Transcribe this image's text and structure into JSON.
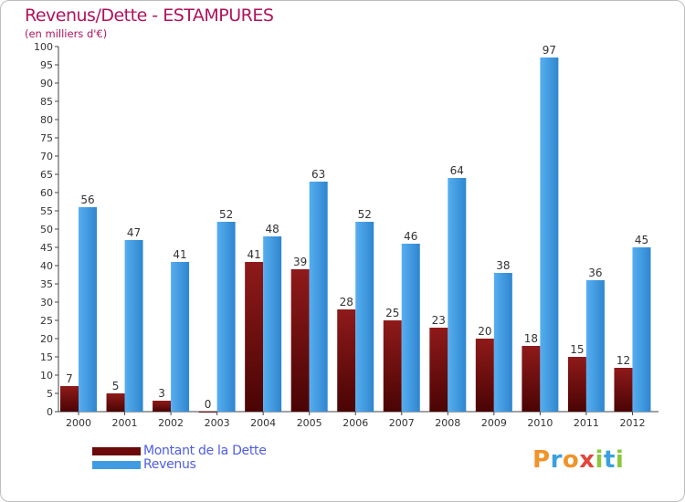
{
  "header": {
    "title": "Revenus/Dette - ESTAMPURES",
    "subtitle": "(en milliers d'€)"
  },
  "colors": {
    "title": "#b0135c",
    "dette": "#7a0c0c",
    "revenus": "#3f9ce3",
    "legend_text": "#4f5de6"
  },
  "legend": {
    "items": [
      {
        "label": "Montant de la Dette",
        "color": "#6a0a0a"
      },
      {
        "label": "Revenus",
        "color": "#3f9ce3"
      }
    ]
  },
  "logo": {
    "letters": [
      "P",
      "r",
      "o",
      "x",
      "i",
      "t",
      "i"
    ]
  },
  "chart_data": {
    "type": "bar",
    "title": "Revenus/Dette - ESTAMPURES",
    "subtitle": "(en milliers d'€)",
    "categories": [
      "2000",
      "2001",
      "2002",
      "2003",
      "2004",
      "2005",
      "2006",
      "2007",
      "2008",
      "2009",
      "2010",
      "2011",
      "2012"
    ],
    "series": [
      {
        "name": "Montant de la Dette",
        "values": [
          7,
          5,
          3,
          0,
          41,
          39,
          28,
          25,
          23,
          20,
          18,
          15,
          12
        ]
      },
      {
        "name": "Revenus",
        "values": [
          56,
          47,
          41,
          52,
          48,
          63,
          52,
          46,
          64,
          38,
          97,
          36,
          45
        ]
      }
    ],
    "ylim": [
      0,
      100
    ],
    "ytick_step": 5,
    "grid": false,
    "legend_position": "bottom-left"
  }
}
